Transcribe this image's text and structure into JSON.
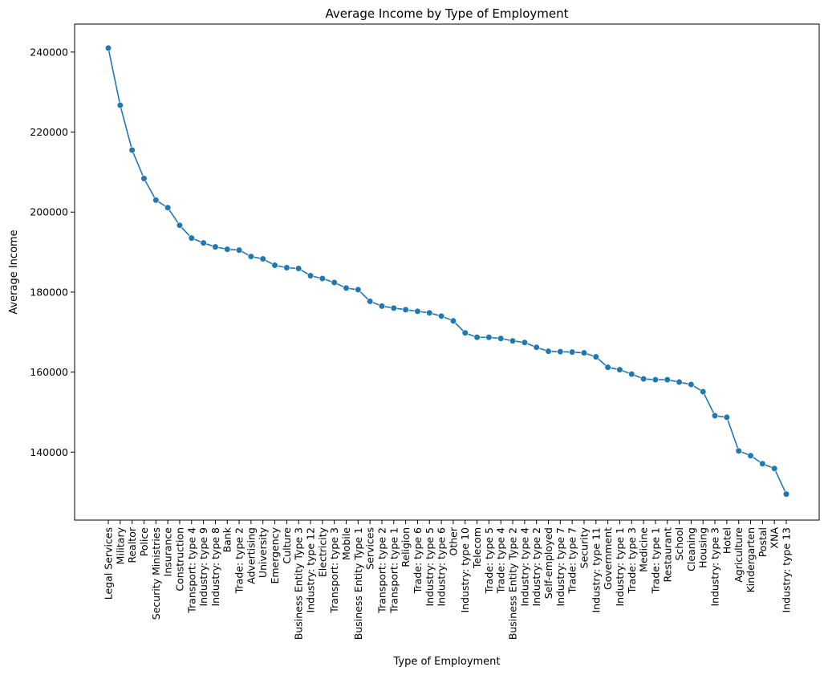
{
  "chart_data": {
    "type": "line",
    "title": "Average Income by Type of Employment",
    "xlabel": "Type of Employment",
    "ylabel": "Average Income",
    "ylim": [
      123000,
      247000
    ],
    "yticks": [
      "140000",
      "160000",
      "180000",
      "200000",
      "220000",
      "240000"
    ],
    "grid": false,
    "legend": "none",
    "color": "#1f77b4",
    "categories": [
      "Legal Services",
      "Military",
      "Realtor",
      "Police",
      "Security Ministries",
      "Insurance",
      "Construction",
      "Transport: type 4",
      "Industry: type 9",
      "Industry: type 8",
      "Bank",
      "Trade: type 2",
      "Advertising",
      "University",
      "Emergency",
      "Culture",
      "Business Entity Type 3",
      "Industry: type 12",
      "Electricity",
      "Transport: type 3",
      "Mobile",
      "Business Entity Type 1",
      "Services",
      "Transport: type 2",
      "Transport: type 1",
      "Religion",
      "Trade: type 6",
      "Industry: type 5",
      "Industry: type 6",
      "Other",
      "Industry: type 10",
      "Telecom",
      "Trade: type 5",
      "Trade: type 4",
      "Business Entity Type 2",
      "Industry: type 4",
      "Industry: type 2",
      "Self-employed",
      "Industry: type 7",
      "Trade: type 7",
      "Security",
      "Industry: type 11",
      "Government",
      "Industry: type 1",
      "Trade: type 3",
      "Medicine",
      "Trade: type 1",
      "Restaurant",
      "School",
      "Cleaning",
      "Housing",
      "Industry: type 3",
      "Hotel",
      "Agriculture",
      "Kindergarten",
      "Postal",
      "XNA",
      "Industry: type 13"
    ],
    "values": [
      241000,
      226700,
      215500,
      208400,
      203000,
      201100,
      196700,
      193500,
      192300,
      191300,
      190700,
      190500,
      188900,
      188300,
      186700,
      186100,
      185900,
      184100,
      183400,
      182400,
      181000,
      180600,
      177700,
      176500,
      176000,
      175600,
      175200,
      174800,
      174000,
      172800,
      169800,
      168700,
      168700,
      168400,
      167800,
      167400,
      166200,
      165200,
      165100,
      165000,
      164800,
      163800,
      161200,
      160600,
      159500,
      158300,
      158100,
      158100,
      157500,
      156900,
      155100,
      149100,
      148700,
      140300,
      139100,
      137100,
      135900,
      129500
    ]
  }
}
